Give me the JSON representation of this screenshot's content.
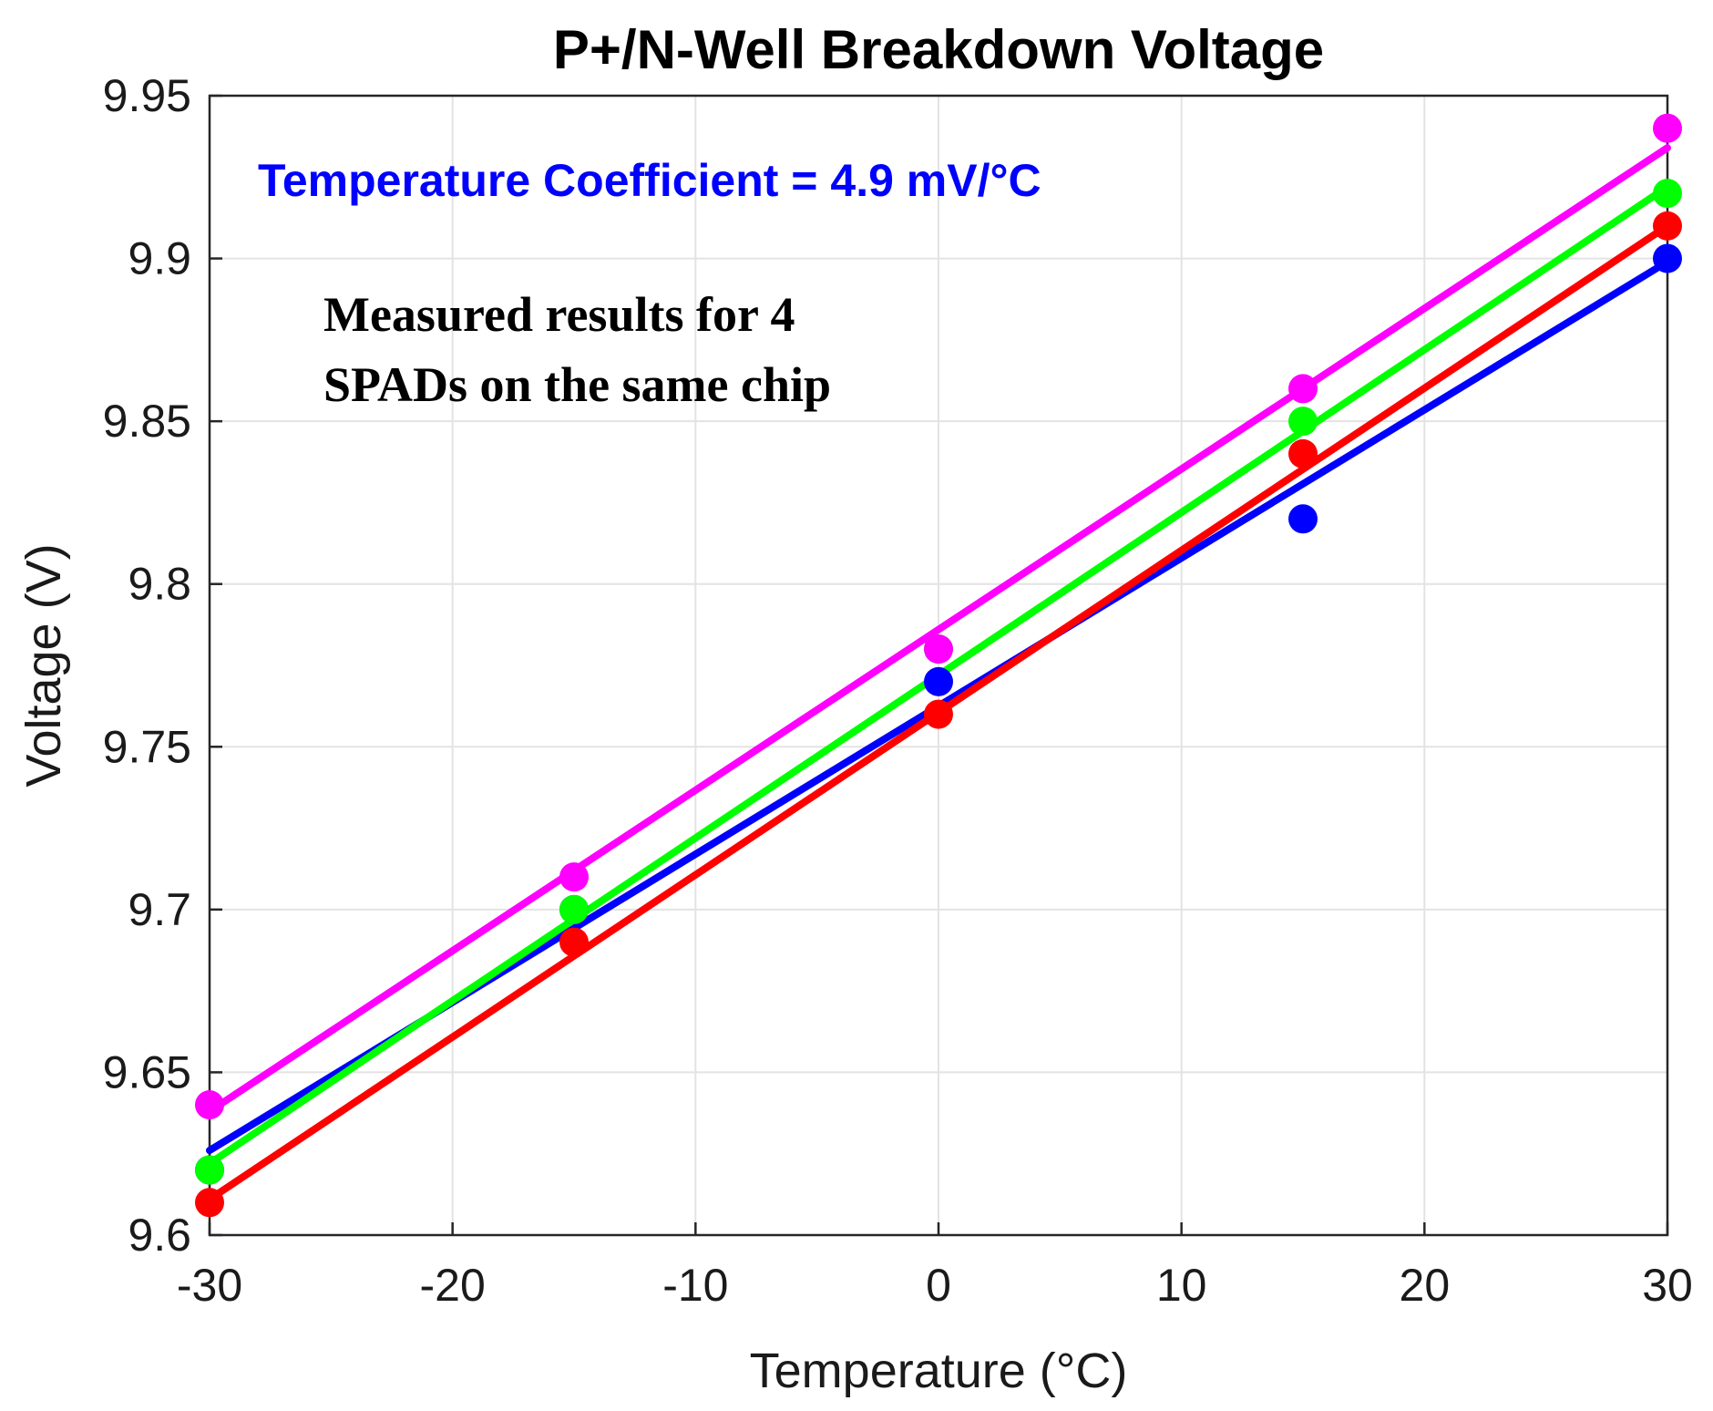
{
  "chart_data": {
    "type": "scatter",
    "title": "P+/N-Well Breakdown Voltage",
    "xlabel": "Temperature (°C)",
    "ylabel": "Voltage (V)",
    "xlim": [
      -30,
      30
    ],
    "ylim": [
      9.6,
      9.95
    ],
    "x_ticks": [
      "-30",
      "-20",
      "-10",
      "0",
      "10",
      "20",
      "30"
    ],
    "y_ticks": [
      "9.6",
      "9.65",
      "9.7",
      "9.75",
      "9.8",
      "9.85",
      "9.9",
      "9.95"
    ],
    "grid": true,
    "annotations": {
      "coefficient": "Temperature Coefficient = 4.9 mV/°C",
      "note_line1": "Measured results for 4",
      "note_line2": "SPADs on the same chip"
    },
    "x": [
      -30,
      -15,
      0,
      15,
      30
    ],
    "series": [
      {
        "color": "#0000ff",
        "values": [
          9.62,
          9.7,
          9.77,
          9.82,
          9.9
        ],
        "fit": [
          9.626,
          9.899
        ]
      },
      {
        "color": "#ff0000",
        "values": [
          9.61,
          9.69,
          9.76,
          9.84,
          9.91
        ],
        "fit": [
          9.611,
          9.91
        ]
      },
      {
        "color": "#00ff00",
        "values": [
          9.62,
          9.7,
          9.78,
          9.85,
          9.92
        ],
        "fit": [
          9.622,
          9.922
        ]
      },
      {
        "color": "#ff00ff",
        "values": [
          9.64,
          9.71,
          9.78,
          9.86,
          9.94
        ],
        "fit": [
          9.638,
          9.934
        ]
      }
    ]
  }
}
